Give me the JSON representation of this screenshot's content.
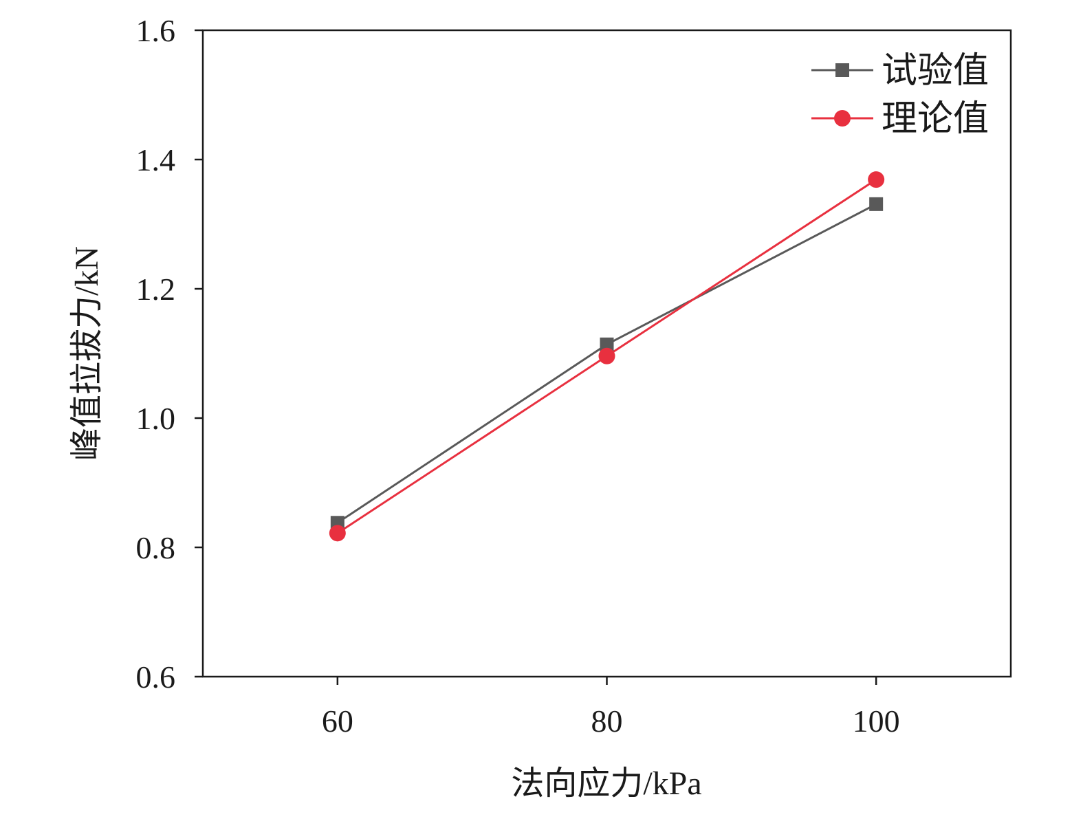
{
  "chart_data": {
    "type": "line",
    "title": "",
    "xlabel": "法向应力/kPa",
    "ylabel": "峰值拉拔力/kN",
    "xlim": [
      50,
      110
    ],
    "ylim": [
      0.6,
      1.6
    ],
    "xticks": [
      60,
      80,
      100
    ],
    "xtick_labels": [
      "60",
      "80",
      "100"
    ],
    "yticks": [
      0.6,
      0.8,
      1.0,
      1.2,
      1.4,
      1.6
    ],
    "ytick_labels": [
      "0.6",
      "0.8",
      "1.0",
      "1.2",
      "1.4",
      "1.6"
    ],
    "grid": false,
    "legend_position": "top-right",
    "x": [
      60,
      80,
      100
    ],
    "series": [
      {
        "name": "试验值",
        "values": [
          0.838,
          1.114,
          1.331
        ],
        "color": "#595959",
        "marker": "square"
      },
      {
        "name": "理论值",
        "values": [
          0.822,
          1.096,
          1.369
        ],
        "color": "#e8303f",
        "marker": "circle"
      }
    ]
  }
}
